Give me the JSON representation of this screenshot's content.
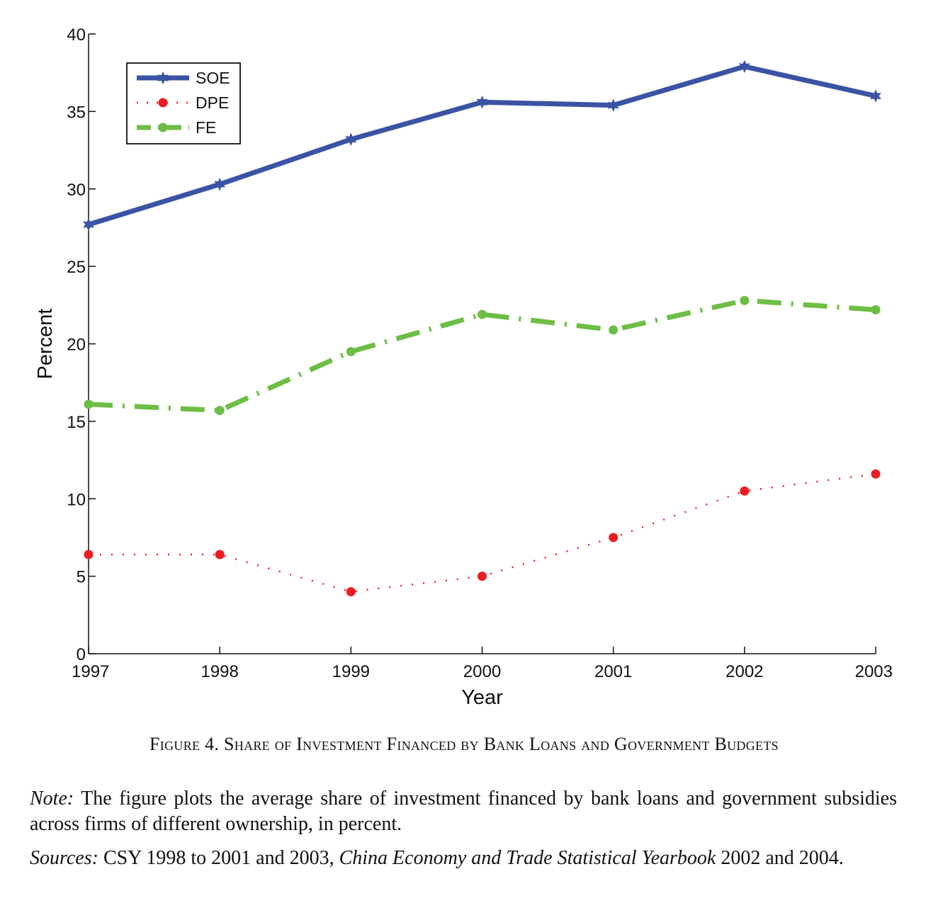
{
  "chart_data": {
    "type": "line",
    "x": [
      1997,
      1998,
      1999,
      2000,
      2001,
      2002,
      2003
    ],
    "xtick_labels": [
      "1997",
      "1998",
      "1999",
      "2000",
      "2001",
      "2002",
      "2003"
    ],
    "ytick_labels": [
      "0",
      "5",
      "10",
      "15",
      "20",
      "25",
      "30",
      "35",
      "40"
    ],
    "xlabel": "Year",
    "ylabel": "Percent",
    "xlim": [
      1997,
      2003
    ],
    "ylim": [
      0,
      40
    ],
    "yticks": [
      0,
      5,
      10,
      15,
      20,
      25,
      30,
      35,
      40
    ],
    "grid": false,
    "legend_position": "top-left",
    "series": [
      {
        "name": "SOE",
        "values": [
          27.7,
          30.3,
          33.2,
          35.6,
          35.4,
          37.9,
          36.0
        ],
        "color": "#3a53a4",
        "line_style": "solid",
        "marker": "star"
      },
      {
        "name": "DPE",
        "values": [
          6.4,
          6.4,
          4.0,
          5.0,
          7.5,
          10.5,
          11.6
        ],
        "color": "#ec1c24",
        "line_style": "dotted",
        "marker": "circle"
      },
      {
        "name": "FE",
        "values": [
          16.1,
          15.7,
          19.5,
          21.9,
          20.9,
          22.8,
          22.2
        ],
        "color": "#6cbe45",
        "line_style": "dash-dot",
        "marker": "circle"
      }
    ]
  },
  "caption": {
    "figure_number": "Figure 4.",
    "title": "Share of Investment Financed by Bank Loans and Government Budgets"
  },
  "note": {
    "label": "Note:",
    "text": "The figure plots the average share of investment financed by bank loans and government subsidies across firms of different ownership, in percent."
  },
  "sources": {
    "label": "Sources:",
    "text_before": "CSY 1998 to 2001 and 2003,",
    "italic_title": "China Economy and Trade Statistical Yearbook",
    "text_after": "2002 and 2004."
  }
}
